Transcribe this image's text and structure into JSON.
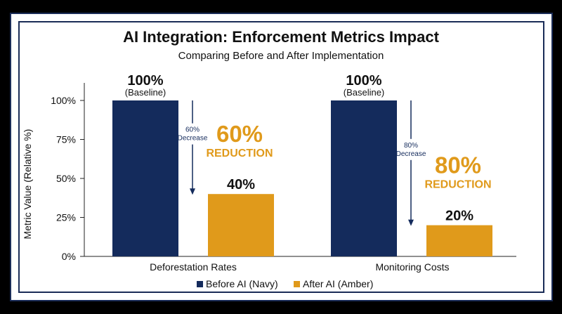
{
  "chart_data": {
    "type": "bar",
    "title": "AI Integration: Enforcement Metrics Impact",
    "subtitle": "Comparing Before and After Implementation",
    "ylabel": "Metric Value (Relative %)",
    "xlabel": "",
    "ylim": [
      0,
      100
    ],
    "yticks": [
      "0%",
      "25%",
      "50%",
      "75%",
      "100%"
    ],
    "ytick_values": [
      0,
      25,
      50,
      75,
      100
    ],
    "categories": [
      "Deforestation Rates",
      "Monitoring Costs"
    ],
    "series": [
      {
        "name": "Before AI (Navy)",
        "values": [
          100,
          100
        ],
        "color": "#142b5c"
      },
      {
        "name": "After AI (Amber)",
        "values": [
          40,
          20
        ],
        "color": "#e09a1b"
      }
    ],
    "legend_position": "bottom",
    "grid": false,
    "annotations": [
      {
        "baseline_value": "100%",
        "baseline_note": "(Baseline)",
        "after_value": "40%",
        "arrow_label_1": "60%",
        "arrow_label_2": "Decrease",
        "reduction_value": "60%",
        "reduction_word": "REDUCTION"
      },
      {
        "baseline_value": "100%",
        "baseline_note": "(Baseline)",
        "after_value": "20%",
        "arrow_label_1": "80%",
        "arrow_label_2": "Decrease",
        "reduction_value": "80%",
        "reduction_word": "REDUCTION"
      }
    ],
    "colors": {
      "navy": "#142b5c",
      "amber": "#e09a1b",
      "text": "#111111",
      "axis": "#222222"
    }
  }
}
